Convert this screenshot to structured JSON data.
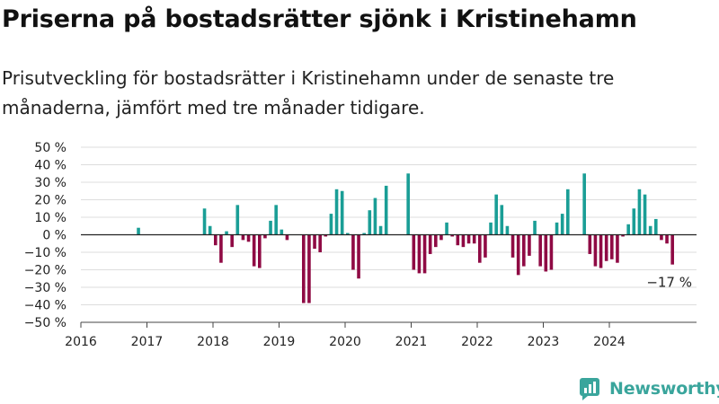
{
  "title": "Priserna på bostadsrätter sjönk i Kristinehamn",
  "subtitle": "Prisutveckling för bostadsrätter i Kristinehamn under de senaste tre månaderna, jämfört med tre månader tidigare.",
  "brand": {
    "name": "Newsworthy",
    "icon": "newsworthy-logo-icon"
  },
  "colors": {
    "positive": "#1a9e96",
    "negative": "#8f0a44",
    "brand": "#3aa59c",
    "grid": "#dddddd",
    "zero_line": "#222222"
  },
  "chart_data": {
    "type": "bar",
    "x_unit": "month",
    "y_unit": "%",
    "ylim": [
      -50,
      50
    ],
    "y_ticks": [
      {
        "value": 50,
        "label": "50 %"
      },
      {
        "value": 40,
        "label": "40 %"
      },
      {
        "value": 30,
        "label": "30 %"
      },
      {
        "value": 20,
        "label": "20 %"
      },
      {
        "value": 10,
        "label": "10 %"
      },
      {
        "value": 0,
        "label": "0 %"
      },
      {
        "value": -10,
        "label": "−10 %"
      },
      {
        "value": -20,
        "label": "−20 %"
      },
      {
        "value": -30,
        "label": "−30 %"
      },
      {
        "value": -40,
        "label": "−40 %"
      },
      {
        "value": -50,
        "label": "−50 %"
      }
    ],
    "x_ticks": [
      "2016",
      "2017",
      "2018",
      "2019",
      "2020",
      "2021",
      "2022",
      "2023",
      "2024"
    ],
    "grid": true,
    "last_value_label": "−17 %",
    "data": [
      {
        "x": "2016-11",
        "y": 4
      },
      {
        "x": "2017-11",
        "y": 15
      },
      {
        "x": "2017-12",
        "y": 5
      },
      {
        "x": "2018-01",
        "y": -6
      },
      {
        "x": "2018-02",
        "y": -16
      },
      {
        "x": "2018-03",
        "y": 2
      },
      {
        "x": "2018-04",
        "y": -7
      },
      {
        "x": "2018-05",
        "y": 17
      },
      {
        "x": "2018-06",
        "y": -3
      },
      {
        "x": "2018-07",
        "y": -4
      },
      {
        "x": "2018-08",
        "y": -18
      },
      {
        "x": "2018-09",
        "y": -19
      },
      {
        "x": "2018-10",
        "y": -2
      },
      {
        "x": "2018-11",
        "y": 8
      },
      {
        "x": "2018-12",
        "y": 17
      },
      {
        "x": "2019-01",
        "y": 3
      },
      {
        "x": "2019-02",
        "y": -3
      },
      {
        "x": "2019-05",
        "y": -39
      },
      {
        "x": "2019-06",
        "y": -39
      },
      {
        "x": "2019-07",
        "y": -8
      },
      {
        "x": "2019-08",
        "y": -10
      },
      {
        "x": "2019-09",
        "y": -1
      },
      {
        "x": "2019-10",
        "y": 12
      },
      {
        "x": "2019-11",
        "y": 26
      },
      {
        "x": "2019-12",
        "y": 25
      },
      {
        "x": "2020-01",
        "y": 1
      },
      {
        "x": "2020-02",
        "y": -20
      },
      {
        "x": "2020-03",
        "y": -25
      },
      {
        "x": "2020-04",
        "y": 1
      },
      {
        "x": "2020-05",
        "y": 14
      },
      {
        "x": "2020-06",
        "y": 21
      },
      {
        "x": "2020-07",
        "y": 5
      },
      {
        "x": "2020-08",
        "y": 28
      },
      {
        "x": "2020-12",
        "y": 35
      },
      {
        "x": "2021-01",
        "y": -20
      },
      {
        "x": "2021-02",
        "y": -22
      },
      {
        "x": "2021-03",
        "y": -22
      },
      {
        "x": "2021-04",
        "y": -11
      },
      {
        "x": "2021-05",
        "y": -7
      },
      {
        "x": "2021-06",
        "y": -3
      },
      {
        "x": "2021-07",
        "y": 7
      },
      {
        "x": "2021-08",
        "y": -1
      },
      {
        "x": "2021-09",
        "y": -6
      },
      {
        "x": "2021-10",
        "y": -7
      },
      {
        "x": "2021-11",
        "y": -5
      },
      {
        "x": "2021-12",
        "y": -5
      },
      {
        "x": "2022-01",
        "y": -16
      },
      {
        "x": "2022-02",
        "y": -13
      },
      {
        "x": "2022-03",
        "y": 7
      },
      {
        "x": "2022-04",
        "y": 23
      },
      {
        "x": "2022-05",
        "y": 17
      },
      {
        "x": "2022-06",
        "y": 5
      },
      {
        "x": "2022-07",
        "y": -13
      },
      {
        "x": "2022-08",
        "y": -23
      },
      {
        "x": "2022-09",
        "y": -18
      },
      {
        "x": "2022-10",
        "y": -12
      },
      {
        "x": "2022-11",
        "y": 8
      },
      {
        "x": "2022-12",
        "y": -18
      },
      {
        "x": "2023-01",
        "y": -21
      },
      {
        "x": "2023-02",
        "y": -20
      },
      {
        "x": "2023-03",
        "y": 7
      },
      {
        "x": "2023-04",
        "y": 12
      },
      {
        "x": "2023-05",
        "y": 26
      },
      {
        "x": "2023-08",
        "y": 35
      },
      {
        "x": "2023-09",
        "y": -11
      },
      {
        "x": "2023-10",
        "y": -18
      },
      {
        "x": "2023-11",
        "y": -19
      },
      {
        "x": "2023-12",
        "y": -15
      },
      {
        "x": "2024-01",
        "y": -14
      },
      {
        "x": "2024-02",
        "y": -16
      },
      {
        "x": "2024-03",
        "y": -1
      },
      {
        "x": "2024-04",
        "y": 6
      },
      {
        "x": "2024-05",
        "y": 15
      },
      {
        "x": "2024-06",
        "y": 26
      },
      {
        "x": "2024-07",
        "y": 23
      },
      {
        "x": "2024-08",
        "y": 5
      },
      {
        "x": "2024-09",
        "y": 9
      },
      {
        "x": "2024-10",
        "y": -3
      },
      {
        "x": "2024-11",
        "y": -5
      },
      {
        "x": "2024-12",
        "y": -17
      }
    ]
  }
}
